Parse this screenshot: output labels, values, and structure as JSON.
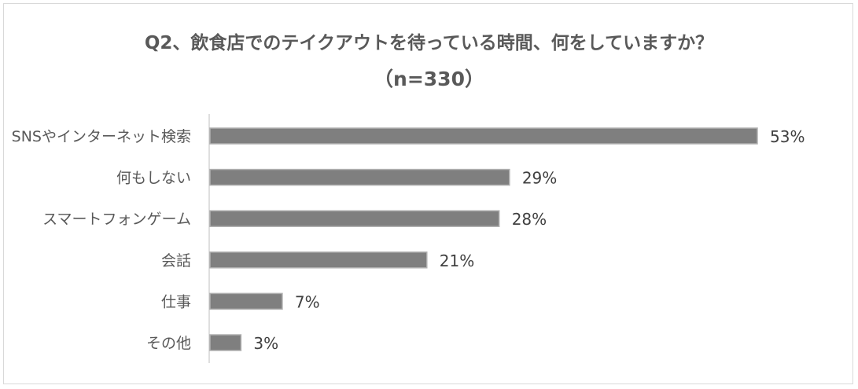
{
  "chart_data": {
    "type": "bar",
    "orientation": "horizontal",
    "title": "Q2、飲食店でのテイクアウトを待っている時間、何をしていますか？",
    "subtitle": "（n=330）",
    "categories": [
      "SNSやインターネット検索",
      "何もしない",
      "スマートフォンゲーム",
      "会話",
      "仕事",
      "その他"
    ],
    "values": [
      53,
      29,
      28,
      21,
      7,
      3
    ],
    "value_labels": [
      "53%",
      "29%",
      "28%",
      "21%",
      "7%",
      "3%"
    ],
    "unit": "%",
    "xlim": [
      0,
      60
    ],
    "grid": false,
    "legend": "none",
    "bar_color": "#7f7f7f",
    "bar_border_color": "#b0b0b0"
  }
}
